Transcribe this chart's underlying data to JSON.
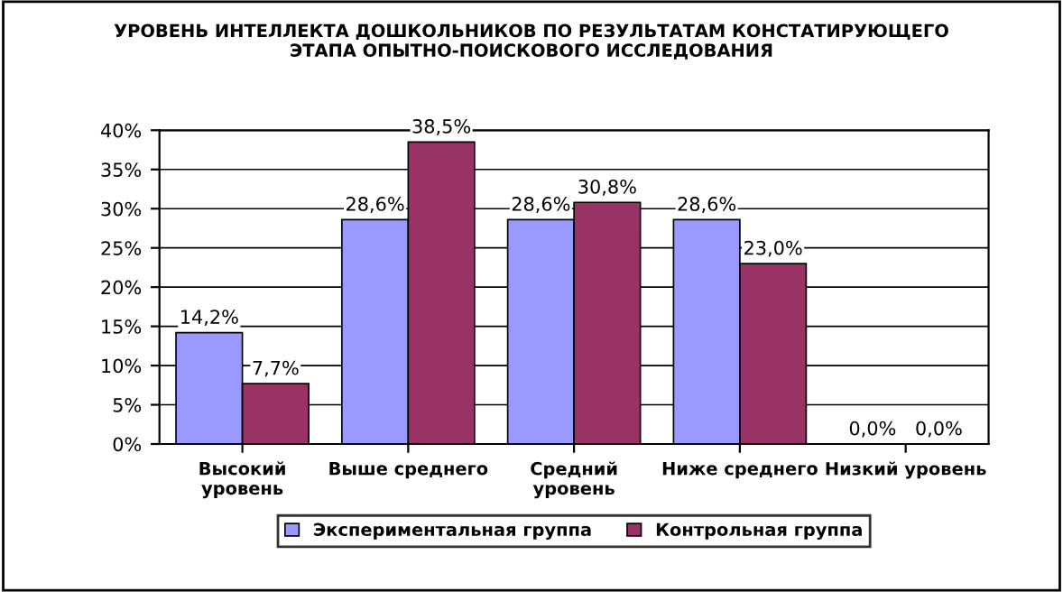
{
  "chart_data": {
    "type": "bar",
    "title": "УРОВЕНЬ ИНТЕЛЛЕКТА ДОШКОЛЬНИКОВ ПО РЕЗУЛЬТАТАМ КОНСТАТИРУЮЩЕГО\nЭТАПА ОПЫТНО-ПОИСКОВОГО ИССЛЕДОВАНИЯ",
    "categories": [
      "Высокий\nуровень",
      "Выше среднего",
      "Средний\nуровень",
      "Ниже среднего",
      "Низкий уровень"
    ],
    "series": [
      {
        "name": "Экспериментальная группа",
        "color": "#9999ff",
        "values": [
          14.2,
          28.6,
          28.6,
          28.6,
          0.0
        ],
        "value_labels": [
          "14,2%",
          "28,6%",
          "28,6%",
          "28,6%",
          "0,0%"
        ]
      },
      {
        "name": "Контрольная группа",
        "color": "#993366",
        "values": [
          7.7,
          38.5,
          30.8,
          23.0,
          0.0
        ],
        "value_labels": [
          "7,7%",
          "38,5%",
          "30,8%",
          "23,0%",
          "0,0%"
        ]
      }
    ],
    "ylim": [
      0,
      40
    ],
    "yticks": [
      {
        "value": 0,
        "label": "0%"
      },
      {
        "value": 5,
        "label": "5%"
      },
      {
        "value": 10,
        "label": "10%"
      },
      {
        "value": 15,
        "label": "15%"
      },
      {
        "value": 20,
        "label": "20%"
      },
      {
        "value": 25,
        "label": "25%"
      },
      {
        "value": 30,
        "label": "30%"
      },
      {
        "value": 35,
        "label": "35%"
      },
      {
        "value": 40,
        "label": "40%"
      }
    ],
    "grid": "y",
    "legend": "bottom"
  }
}
